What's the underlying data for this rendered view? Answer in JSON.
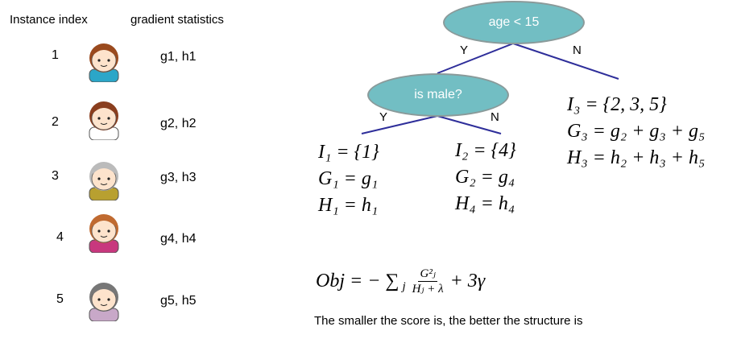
{
  "headers": {
    "instance": "Instance index",
    "gradient": "gradient statistics"
  },
  "instances": [
    {
      "index": "1",
      "stats": "g1, h1",
      "avatar": "boy-avatar",
      "shirt": "#2ba6c8",
      "hair": "#9a4a1e"
    },
    {
      "index": "2",
      "stats": "g2, h2",
      "avatar": "girl-braids-avatar",
      "shirt": "#ffffff",
      "hair": "#8a3e1e"
    },
    {
      "index": "3",
      "stats": "g3, h3",
      "avatar": "grandfather-avatar",
      "shirt": "#b8a030",
      "hair": "#bbbbbb"
    },
    {
      "index": "4",
      "stats": "g4, h4",
      "avatar": "girl-ponytail-avatar",
      "shirt": "#c8387e",
      "hair": "#c06a30"
    },
    {
      "index": "5",
      "stats": "g5, h5",
      "avatar": "grandmother-avatar",
      "shirt": "#c8a8c8",
      "hair": "#777777"
    }
  ],
  "tree": {
    "root": "age < 15",
    "root_yes": "Y",
    "root_no": "N",
    "child": "is male?",
    "child_yes": "Y",
    "child_no": "N",
    "node_color": "#72bec3",
    "edge_color": "#2e2e9a",
    "leaf1": [
      "I₁ = {1}",
      "G₁ = g₁",
      "H₁ = h₁"
    ],
    "leaf2": [
      "I₂ = {4}",
      "G₂ = g₄",
      "H₄ = h₄"
    ],
    "leaf3": [
      "I₃ = {2, 3, 5}",
      "G₃ = g₂ + g₃ + g₅",
      "H₃ = h₂ + h₃ + h₅"
    ]
  },
  "objective": {
    "lhs": "Obj = − ∑",
    "sub": "j",
    "num": "G²ⱼ",
    "den": "Hⱼ + λ",
    "rhs": "+ 3γ"
  },
  "caption": "The smaller the score is, the better the structure is"
}
